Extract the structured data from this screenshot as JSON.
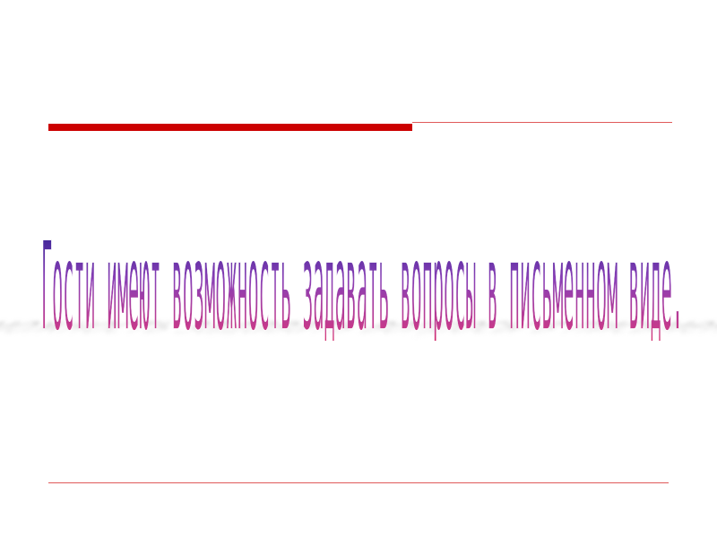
{
  "slide": {
    "wordart_text": "Гости имеют возможность задавать вопросы в письменном виде.",
    "colors": {
      "top_rule": "#cc0000",
      "thin_rule": "#e05a5a",
      "text_top": "#1a1a8c",
      "text_mid": "#8a3fb5",
      "text_bottom": "#e0103a",
      "shadow": "#b0b0b0"
    }
  }
}
